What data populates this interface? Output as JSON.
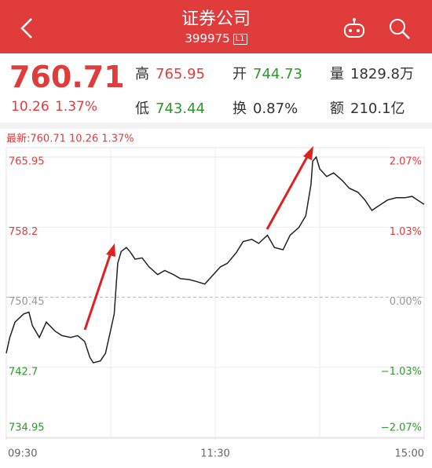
{
  "header": {
    "title": "证券公司",
    "code": "399975",
    "badge": "L1"
  },
  "quote": {
    "price": "760.71",
    "change": "10.26",
    "change_pct": "1.37%",
    "stats": [
      {
        "label": "高",
        "value": "765.95"
      },
      {
        "label": "开",
        "value": "744.73"
      },
      {
        "label": "量",
        "value": "1829.8万"
      },
      {
        "label": "低",
        "value": "743.44"
      },
      {
        "label": "换",
        "value": "0.87%"
      },
      {
        "label": "额",
        "value": "210.1亿"
      }
    ]
  },
  "chart_data": {
    "type": "line",
    "latest_label": "最新:760.71  10.26  1.37%",
    "x": [
      0,
      2,
      5,
      10,
      13,
      15,
      19,
      23,
      28,
      32,
      37,
      41,
      45,
      48,
      50,
      54,
      57,
      60,
      62,
      64,
      66,
      69,
      71,
      74,
      78,
      82,
      87,
      91,
      96,
      100,
      105,
      109,
      114,
      118,
      123,
      127,
      132,
      136,
      141,
      145,
      150,
      154,
      159,
      163,
      168,
      172,
      175,
      176,
      178,
      180,
      184,
      188,
      193,
      197,
      202,
      206,
      210,
      215,
      219,
      224,
      229,
      233,
      240
    ],
    "series": [
      {
        "name": "price",
        "color": "#222222",
        "values": [
          744.25,
          745.98,
          747.7,
          748.6,
          748.8,
          747.3,
          746.0,
          747.7,
          746.7,
          746.2,
          746.0,
          746.2,
          745.55,
          743.8,
          743.2,
          743.4,
          744.25,
          746.85,
          748.6,
          754.2,
          755.5,
          755.95,
          755.5,
          754.65,
          754.8,
          753.8,
          752.95,
          753.4,
          752.95,
          752.5,
          752.4,
          752.2,
          751.9,
          752.75,
          753.8,
          754.2,
          755.35,
          756.6,
          756.85,
          756.4,
          757.3,
          755.95,
          755.7,
          757.3,
          758.15,
          759.45,
          762.9,
          765.5,
          765.95,
          764.65,
          763.8,
          764.2,
          763.35,
          762.5,
          762.05,
          761.2,
          760.05,
          760.7,
          761.2,
          761.45,
          761.45,
          761.6,
          760.71
        ]
      }
    ],
    "xlim": [
      0,
      240
    ],
    "xticks": [
      {
        "value": 0,
        "label": "09:30"
      },
      {
        "value": 120,
        "label": "11:30"
      },
      {
        "value": 240,
        "label": "15:00"
      }
    ],
    "ylim": [
      734.95,
      765.95
    ],
    "yticks": [
      765.95,
      758.2,
      750.45,
      742.7,
      734.95
    ],
    "y2lim": [
      -2.07,
      2.07
    ],
    "y2ticks": [
      {
        "value": 2.07,
        "label": "2.07%"
      },
      {
        "value": 1.03,
        "label": "1.03%"
      },
      {
        "value": 0,
        "label": "0.00%"
      },
      {
        "value": -1.03,
        "label": "−1.03%"
      },
      {
        "value": -2.07,
        "label": "−2.07%"
      }
    ]
  }
}
